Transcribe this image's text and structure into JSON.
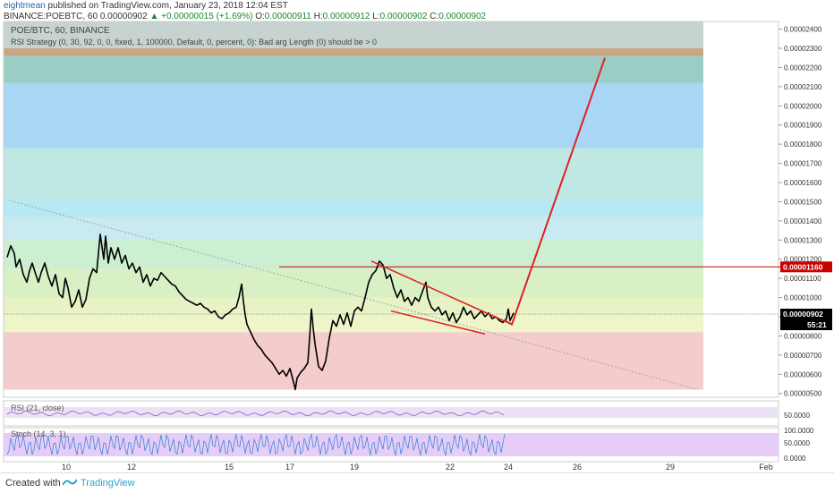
{
  "header": {
    "author": "eightmean",
    "published": "published on TradingView.com, January 23, 2018 12:04 EST",
    "symbol_line": "BINANCE:POEBTC, 60",
    "price": "0.00000902",
    "change": "+0.00000015 (+1.69%)",
    "o_label": "O:",
    "o_value": "0.00000911",
    "h_label": "H:",
    "h_value": "0.00000912",
    "l_label": "L:",
    "l_value": "0.00000902",
    "c_label": "C:",
    "c_value": "0.00000902"
  },
  "legend": {
    "pair": "POE/BTC, 60, BINANCE",
    "strategy": "RSI Strategy (0, 30, 92, 0, 0, fixed, 1, 100000, Default, 0, percent, 0): Bad arg Length (0) should be > 0"
  },
  "footer": {
    "made_with": "Created with",
    "brand": "TradingView"
  },
  "chart_data": [
    {
      "type": "line",
      "title": "POE/BTC, 60, BINANCE",
      "x_ticks": [
        "10",
        "12",
        "15",
        "17",
        "19",
        "22",
        "24",
        "26",
        "29",
        "Feb"
      ],
      "y_ticks": [
        "0.00000500",
        "0.00000600",
        "0.00000700",
        "0.00000800",
        "0.00000900",
        "0.00001000",
        "0.00001100",
        "0.00001200",
        "0.00001300",
        "0.00001400",
        "0.00001500",
        "0.00001600",
        "0.00001700",
        "0.00001800",
        "0.00001900",
        "0.00002000",
        "0.00002100",
        "0.00002200",
        "0.00002300",
        "0.00002400"
      ],
      "ylim": [
        4.8e-06,
        2.44e-05
      ],
      "price_labels": [
        {
          "value": "0.00001160",
          "color": "#cc0000"
        },
        {
          "value": "0.00000902",
          "color": "#000000"
        },
        {
          "value": "55:21",
          "color": "#000000"
        }
      ],
      "horizontal_line": 1.16e-05,
      "zones": [
        {
          "from": 5.2e-06,
          "to": 8.2e-06,
          "color": "#f5cccc"
        },
        {
          "from": 8.2e-06,
          "to": 9.2e-06,
          "color": "#eef5c8"
        },
        {
          "from": 9.2e-06,
          "to": 1e-05,
          "color": "#e7f3c5"
        },
        {
          "from": 1e-05,
          "to": 1.15e-05,
          "color": "#d8f0c4"
        },
        {
          "from": 1.15e-05,
          "to": 1.3e-05,
          "color": "#ccefd2"
        },
        {
          "from": 1.3e-05,
          "to": 1.42e-05,
          "color": "#c9eaf1"
        },
        {
          "from": 1.42e-05,
          "to": 1.5e-05,
          "color": "#b6e9f3"
        },
        {
          "from": 1.5e-05,
          "to": 1.78e-05,
          "color": "#bfe8e4"
        },
        {
          "from": 1.78e-05,
          "to": 2.12e-05,
          "color": "#a9d6f4"
        },
        {
          "from": 2.12e-05,
          "to": 2.26e-05,
          "color": "#9ccdc4"
        },
        {
          "from": 2.26e-05,
          "to": 2.3e-05,
          "color": "#c8a782"
        },
        {
          "from": 2.3e-05,
          "to": 2.44e-05,
          "color": "#c6d3d0"
        }
      ],
      "price_path": [
        [
          0,
          1.21e-05
        ],
        [
          4,
          1.27e-05
        ],
        [
          8,
          1.23e-05
        ],
        [
          10,
          1.16e-05
        ],
        [
          14,
          1.2e-05
        ],
        [
          18,
          1.12e-05
        ],
        [
          22,
          1.08e-05
        ],
        [
          25,
          1.14e-05
        ],
        [
          28,
          1.18e-05
        ],
        [
          32,
          1.12e-05
        ],
        [
          35,
          1.08e-05
        ],
        [
          38,
          1.13e-05
        ],
        [
          42,
          1.18e-05
        ],
        [
          46,
          1.11e-05
        ],
        [
          50,
          1.06e-05
        ],
        [
          54,
          1.12e-05
        ],
        [
          58,
          1.02e-05
        ],
        [
          62,
          1e-05
        ],
        [
          65,
          1.1e-05
        ],
        [
          68,
          1.05e-05
        ],
        [
          72,
          9.5e-06
        ],
        [
          76,
          9.8e-06
        ],
        [
          80,
          1.04e-05
        ],
        [
          84,
          9.5e-06
        ],
        [
          88,
          9.9e-06
        ],
        [
          92,
          1.1e-05
        ],
        [
          96,
          1.15e-05
        ],
        [
          100,
          1.13e-05
        ],
        [
          104,
          1.33e-05
        ],
        [
          108,
          1.2e-05
        ],
        [
          110,
          1.32e-05
        ],
        [
          113,
          1.18e-05
        ],
        [
          116,
          1.26e-05
        ],
        [
          120,
          1.2e-05
        ],
        [
          124,
          1.26e-05
        ],
        [
          128,
          1.18e-05
        ],
        [
          132,
          1.22e-05
        ],
        [
          136,
          1.15e-05
        ],
        [
          140,
          1.18e-05
        ],
        [
          144,
          1.13e-05
        ],
        [
          148,
          1.16e-05
        ],
        [
          152,
          1.08e-05
        ],
        [
          156,
          1.12e-05
        ],
        [
          160,
          1.06e-05
        ],
        [
          164,
          1.1e-05
        ],
        [
          168,
          1.09e-05
        ],
        [
          172,
          1.13e-05
        ],
        [
          176,
          1.11e-05
        ],
        [
          180,
          1.09e-05
        ],
        [
          184,
          1.07e-05
        ],
        [
          188,
          1.06e-05
        ],
        [
          192,
          1.03e-05
        ],
        [
          196,
          1.01e-05
        ],
        [
          200,
          9.9e-06
        ],
        [
          204,
          9.8e-06
        ],
        [
          208,
          9.7e-06
        ],
        [
          212,
          9.6e-06
        ],
        [
          216,
          9.7e-06
        ],
        [
          220,
          9.5e-06
        ],
        [
          224,
          9.4e-06
        ],
        [
          228,
          9.2e-06
        ],
        [
          232,
          9.3e-06
        ],
        [
          236,
          9e-06
        ],
        [
          240,
          8.9e-06
        ],
        [
          244,
          9.1e-06
        ],
        [
          248,
          9.2e-06
        ],
        [
          252,
          9.4e-06
        ],
        [
          256,
          9.5e-06
        ],
        [
          259,
          1e-05
        ],
        [
          262,
          1.07e-05
        ],
        [
          264,
          9.8e-06
        ],
        [
          266,
          9.1e-06
        ],
        [
          268,
          8.6e-06
        ],
        [
          272,
          8.2e-06
        ],
        [
          276,
          7.8e-06
        ],
        [
          280,
          7.5e-06
        ],
        [
          284,
          7.3e-06
        ],
        [
          288,
          7e-06
        ],
        [
          292,
          6.8e-06
        ],
        [
          296,
          6.6e-06
        ],
        [
          300,
          6.3e-06
        ],
        [
          304,
          6e-06
        ],
        [
          308,
          6.2e-06
        ],
        [
          312,
          5.9e-06
        ],
        [
          316,
          6.3e-06
        ],
        [
          320,
          5.6e-06
        ],
        [
          322,
          5.2e-06
        ],
        [
          324,
          5.8e-06
        ],
        [
          328,
          6.1e-06
        ],
        [
          332,
          6.3e-06
        ],
        [
          336,
          6.6e-06
        ],
        [
          338,
          7.9e-06
        ],
        [
          340,
          9.4e-06
        ],
        [
          342,
          8.4e-06
        ],
        [
          344,
          7.6e-06
        ],
        [
          346,
          7e-06
        ],
        [
          348,
          6.4e-06
        ],
        [
          352,
          6.2e-06
        ],
        [
          356,
          6.7e-06
        ],
        [
          360,
          7.9e-06
        ],
        [
          364,
          8.8e-06
        ],
        [
          368,
          8.5e-06
        ],
        [
          372,
          9.1e-06
        ],
        [
          376,
          8.6e-06
        ],
        [
          380,
          9.2e-06
        ],
        [
          384,
          8.5e-06
        ],
        [
          388,
          9.3e-06
        ],
        [
          392,
          9.5e-06
        ],
        [
          396,
          9.3e-06
        ],
        [
          400,
          1e-05
        ],
        [
          404,
          1.08e-05
        ],
        [
          408,
          1.12e-05
        ],
        [
          412,
          1.14e-05
        ],
        [
          416,
          1.19e-05
        ],
        [
          420,
          1.17e-05
        ],
        [
          424,
          1.1e-05
        ],
        [
          428,
          1.12e-05
        ],
        [
          432,
          1.05e-05
        ],
        [
          436,
          1e-05
        ],
        [
          440,
          1.04e-05
        ],
        [
          444,
          9.8e-06
        ],
        [
          448,
          1e-05
        ],
        [
          452,
          9.6e-06
        ],
        [
          456,
          1e-05
        ],
        [
          460,
          9.8e-06
        ],
        [
          464,
          1.03e-05
        ],
        [
          468,
          1.08e-05
        ],
        [
          470,
          1e-05
        ],
        [
          474,
          9.5e-06
        ],
        [
          478,
          9.3e-06
        ],
        [
          482,
          9.5e-06
        ],
        [
          486,
          9.1e-06
        ],
        [
          490,
          9.3e-06
        ],
        [
          494,
          8.8e-06
        ],
        [
          498,
          9.2e-06
        ],
        [
          502,
          8.7e-06
        ],
        [
          506,
          9e-06
        ],
        [
          510,
          9.5e-06
        ],
        [
          514,
          9.1e-06
        ],
        [
          518,
          9.3e-06
        ],
        [
          522,
          8.9e-06
        ],
        [
          526,
          9.1e-06
        ],
        [
          530,
          9.3e-06
        ],
        [
          534,
          9e-06
        ],
        [
          538,
          9.2e-06
        ],
        [
          542,
          8.9e-06
        ],
        [
          546,
          9e-06
        ],
        [
          550,
          8.8e-06
        ],
        [
          554,
          8.7e-06
        ],
        [
          558,
          8.9e-06
        ],
        [
          560,
          9.4e-06
        ],
        [
          562,
          8.8e-06
        ],
        [
          564,
          9e-06
        ],
        [
          566,
          9.2e-06
        ]
      ],
      "trend_dotted": [
        [
          8,
          1.51e-05
        ],
        [
          780,
          5.2e-06
        ]
      ],
      "wedge_upper": [
        [
          415,
          1.19e-05
        ],
        [
          572,
          8.6e-06
        ]
      ],
      "wedge_lower": [
        [
          437,
          9.3e-06
        ],
        [
          542,
          8.1e-06
        ]
      ],
      "projection": [
        [
          564,
          8.8e-06
        ],
        [
          572,
          8.6e-06
        ],
        [
          676,
          2.25e-05
        ]
      ]
    },
    {
      "type": "line",
      "title": "RSI (21, close)",
      "y_ticks": [
        "50.0000"
      ]
    },
    {
      "type": "line",
      "title": "Stoch (14, 3, 1)",
      "y_ticks": [
        "100.0000",
        "50.0000",
        "0.0000"
      ]
    }
  ]
}
